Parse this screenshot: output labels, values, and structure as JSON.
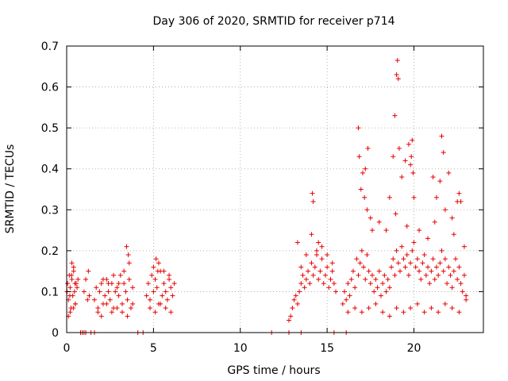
{
  "chart_data": {
    "type": "scatter",
    "title": "Day 306 of 2020, SRMTID for receiver p714",
    "xlabel": "GPS time / hours",
    "ylabel": "SRMTID / TECUs",
    "xlim": [
      0,
      24
    ],
    "ylim": [
      0,
      0.7
    ],
    "grid": true,
    "marker": "plus",
    "color": "#e60000",
    "x_ticks": [
      0,
      5,
      10,
      15,
      20
    ],
    "x_tick_labels": [
      "0",
      "5",
      "10",
      "15",
      "20"
    ],
    "y_ticks": [
      0,
      0.1,
      0.2,
      0.3,
      0.4,
      0.5,
      0.6,
      0.7
    ],
    "y_tick_labels": [
      "0",
      "0.1",
      "0.2",
      "0.3",
      "0.4",
      "0.5",
      "0.6",
      "0.7"
    ],
    "series": [
      {
        "name": "SRMTID",
        "x": [
          0.02,
          0.05,
          0.1,
          0.15,
          0.2,
          0.25,
          0.3,
          0.35,
          0.4,
          0.45,
          0.5,
          0.55,
          0.6,
          0.65,
          0.1,
          0.2,
          0.3,
          0.4,
          0.5,
          0.18,
          0.28,
          0.38,
          0.48,
          1.0,
          1.1,
          1.2,
          1.25,
          1.3,
          1.6,
          1.7,
          1.8,
          1.9,
          2.0,
          2.1,
          2.2,
          2.3,
          2.4,
          2.5,
          2.6,
          2.7,
          2.8,
          2.9,
          3.0,
          3.1,
          3.2,
          3.3,
          3.4,
          3.5,
          3.6,
          3.7,
          3.8,
          1.8,
          2.0,
          2.3,
          2.6,
          2.9,
          3.2,
          3.5,
          3.8,
          2.1,
          2.4,
          2.7,
          3.0,
          3.3,
          3.45,
          3.55,
          3.6,
          4.6,
          4.7,
          4.8,
          4.9,
          5.0,
          5.1,
          5.2,
          5.3,
          5.4,
          5.5,
          5.6,
          5.7,
          5.8,
          5.9,
          6.0,
          6.1,
          6.2,
          4.8,
          5.1,
          5.4,
          5.7,
          6.0,
          5.0,
          5.3,
          5.6,
          5.9,
          5.15,
          5.25,
          12.8,
          12.9,
          13.0,
          13.1,
          13.2,
          13.3,
          13.4,
          13.5,
          13.6,
          13.7,
          13.8,
          13.9,
          14.0,
          14.1,
          14.2,
          14.3,
          14.4,
          14.5,
          14.6,
          14.7,
          14.8,
          14.9,
          15.0,
          15.1,
          15.2,
          15.3,
          15.4,
          15.5,
          13.5,
          13.8,
          14.1,
          14.4,
          14.7,
          15.0,
          15.3,
          14.15,
          14.2,
          14.5,
          13.3,
          15.9,
          16.0,
          16.1,
          16.2,
          16.3,
          16.4,
          16.5,
          16.6,
          16.7,
          16.8,
          16.9,
          17.0,
          17.1,
          17.2,
          17.3,
          17.4,
          17.5,
          17.6,
          17.7,
          17.8,
          17.9,
          18.0,
          18.1,
          18.2,
          18.3,
          18.4,
          18.5,
          18.6,
          18.7,
          18.8,
          18.9,
          19.0,
          19.1,
          19.2,
          19.3,
          19.4,
          19.5,
          19.6,
          19.7,
          19.8,
          19.9,
          20.0,
          20.1,
          20.2,
          20.3,
          20.4,
          20.5,
          20.6,
          20.7,
          20.8,
          20.9,
          21.0,
          21.1,
          21.2,
          21.3,
          21.4,
          21.5,
          21.6,
          21.7,
          21.8,
          21.9,
          22.0,
          22.1,
          22.2,
          22.3,
          22.4,
          22.5,
          22.6,
          22.7,
          22.8,
          22.9,
          23.0,
          16.8,
          16.85,
          17.05,
          17.15,
          17.2,
          17.35,
          17.5,
          16.95,
          17.3,
          18.6,
          18.8,
          18.9,
          19.0,
          19.05,
          19.1,
          19.15,
          18.95,
          19.3,
          19.5,
          19.7,
          19.8,
          19.85,
          19.9,
          19.95,
          20.0,
          21.1,
          21.3,
          21.5,
          21.6,
          21.7,
          21.8,
          22.0,
          22.3,
          22.5,
          22.6,
          22.7,
          17.6,
          18.0,
          18.4,
          19.6,
          20.3,
          20.8,
          21.2,
          22.2,
          22.9,
          16.2,
          16.6,
          17.0,
          17.4,
          17.8,
          18.2,
          18.6,
          19.0,
          19.4,
          19.8,
          20.2,
          20.6,
          21.0,
          21.4,
          21.8,
          22.2,
          22.6,
          23.0,
          0.8,
          0.9,
          1.0,
          1.1,
          1.4,
          1.6,
          4.1,
          4.4,
          11.8,
          12.8,
          13.5,
          15.4,
          16.1
        ],
        "y": [
          0.1,
          0.12,
          0.08,
          0.14,
          0.11,
          0.06,
          0.13,
          0.09,
          0.15,
          0.1,
          0.07,
          0.12,
          0.11,
          0.13,
          0.04,
          0.05,
          0.17,
          0.16,
          0.07,
          0.09,
          0.14,
          0.06,
          0.12,
          0.1,
          0.13,
          0.08,
          0.15,
          0.09,
          0.08,
          0.11,
          0.06,
          0.1,
          0.12,
          0.07,
          0.09,
          0.13,
          0.1,
          0.08,
          0.12,
          0.06,
          0.1,
          0.11,
          0.09,
          0.14,
          0.07,
          0.12,
          0.1,
          0.08,
          0.13,
          0.06,
          0.11,
          0.05,
          0.04,
          0.07,
          0.05,
          0.06,
          0.05,
          0.04,
          0.07,
          0.13,
          0.12,
          0.14,
          0.12,
          0.15,
          0.21,
          0.19,
          0.17,
          0.09,
          0.12,
          0.08,
          0.14,
          0.1,
          0.13,
          0.11,
          0.07,
          0.15,
          0.09,
          0.12,
          0.1,
          0.08,
          0.13,
          0.11,
          0.09,
          0.12,
          0.06,
          0.05,
          0.07,
          0.06,
          0.05,
          0.16,
          0.17,
          0.15,
          0.14,
          0.18,
          0.15,
          0.03,
          0.04,
          0.06,
          0.08,
          0.09,
          0.07,
          0.1,
          0.12,
          0.14,
          0.11,
          0.13,
          0.15,
          0.12,
          0.17,
          0.14,
          0.16,
          0.19,
          0.13,
          0.15,
          0.18,
          0.12,
          0.14,
          0.16,
          0.11,
          0.13,
          0.15,
          0.12,
          0.1,
          0.16,
          0.19,
          0.24,
          0.2,
          0.21,
          0.19,
          0.17,
          0.34,
          0.32,
          0.22,
          0.22,
          0.07,
          0.1,
          0.08,
          0.12,
          0.09,
          0.13,
          0.15,
          0.11,
          0.18,
          0.14,
          0.17,
          0.2,
          0.16,
          0.13,
          0.19,
          0.15,
          0.12,
          0.14,
          0.1,
          0.13,
          0.11,
          0.15,
          0.09,
          0.12,
          0.14,
          0.1,
          0.13,
          0.11,
          0.16,
          0.18,
          0.14,
          0.2,
          0.17,
          0.15,
          0.21,
          0.18,
          0.16,
          0.19,
          0.14,
          0.17,
          0.2,
          0.22,
          0.16,
          0.18,
          0.15,
          0.13,
          0.17,
          0.19,
          0.14,
          0.16,
          0.12,
          0.15,
          0.18,
          0.13,
          0.16,
          0.14,
          0.17,
          0.2,
          0.15,
          0.18,
          0.12,
          0.16,
          0.14,
          0.11,
          0.15,
          0.18,
          0.13,
          0.16,
          0.12,
          0.1,
          0.14,
          0.09,
          0.5,
          0.43,
          0.39,
          0.33,
          0.4,
          0.45,
          0.28,
          0.35,
          0.3,
          0.33,
          0.43,
          0.53,
          0.63,
          0.665,
          0.62,
          0.45,
          0.29,
          0.38,
          0.42,
          0.46,
          0.41,
          0.43,
          0.47,
          0.39,
          0.33,
          0.38,
          0.33,
          0.37,
          0.48,
          0.44,
          0.3,
          0.39,
          0.24,
          0.32,
          0.34,
          0.32,
          0.25,
          0.27,
          0.25,
          0.26,
          0.25,
          0.23,
          0.27,
          0.28,
          0.21,
          0.05,
          0.06,
          0.05,
          0.06,
          0.07,
          0.05,
          0.04,
          0.06,
          0.05,
          0.06,
          0.07,
          0.05,
          0.06,
          0.05,
          0.07,
          0.06,
          0.05,
          0.08,
          0.0,
          0.0,
          0.0,
          0.0,
          0.0,
          0.0,
          0.0,
          0.0,
          0.0,
          0.0,
          0.0,
          0.0,
          0.0
        ]
      }
    ]
  }
}
